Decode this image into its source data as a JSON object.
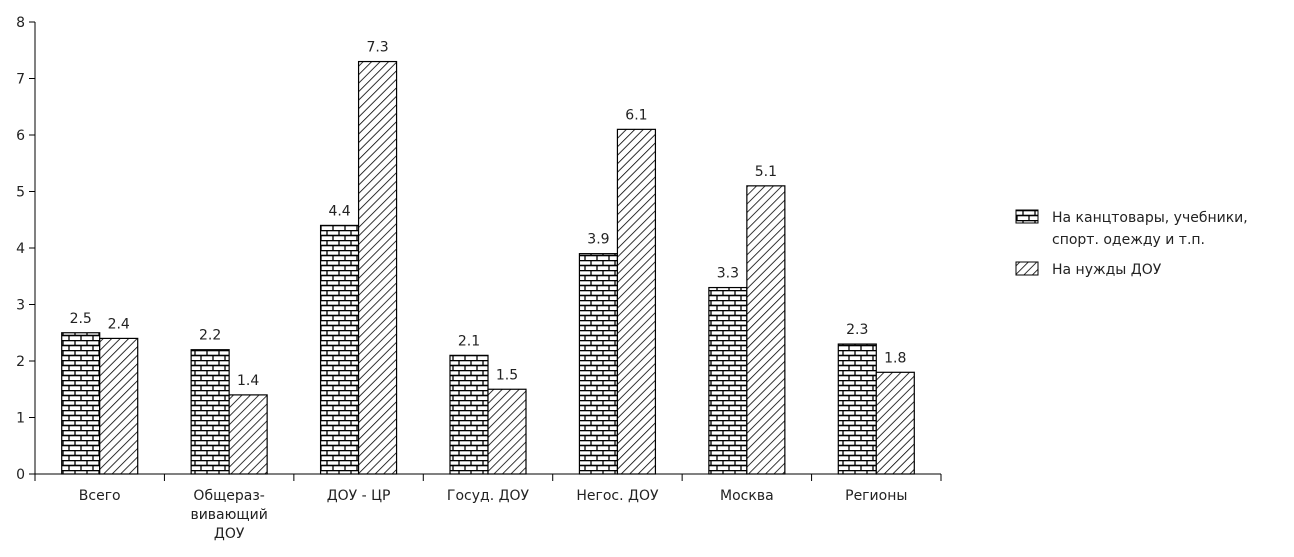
{
  "chart_data": {
    "type": "bar",
    "categories": [
      "Всего",
      "Общераз-\nвивающий\nДОУ",
      "ДОУ - ЦР",
      "Госуд. ДОУ",
      "Негос. ДОУ",
      "Москва",
      "Регионы"
    ],
    "series": [
      {
        "name": "На канцтовары, учебники,\nспорт. одежду и т.п.",
        "color": "#000000",
        "pattern": "brick",
        "values": [
          2.5,
          2.2,
          4.4,
          2.1,
          3.9,
          3.3,
          2.3
        ]
      },
      {
        "name": "На нужды ДОУ",
        "color": "#000000",
        "pattern": "hatch",
        "values": [
          2.4,
          1.4,
          7.3,
          1.5,
          6.1,
          5.1,
          1.8
        ]
      }
    ],
    "ylim": [
      0,
      8
    ],
    "yticks": [
      0,
      1,
      2,
      3,
      4,
      5,
      6,
      7,
      8
    ],
    "grid": false,
    "legend": "right"
  }
}
